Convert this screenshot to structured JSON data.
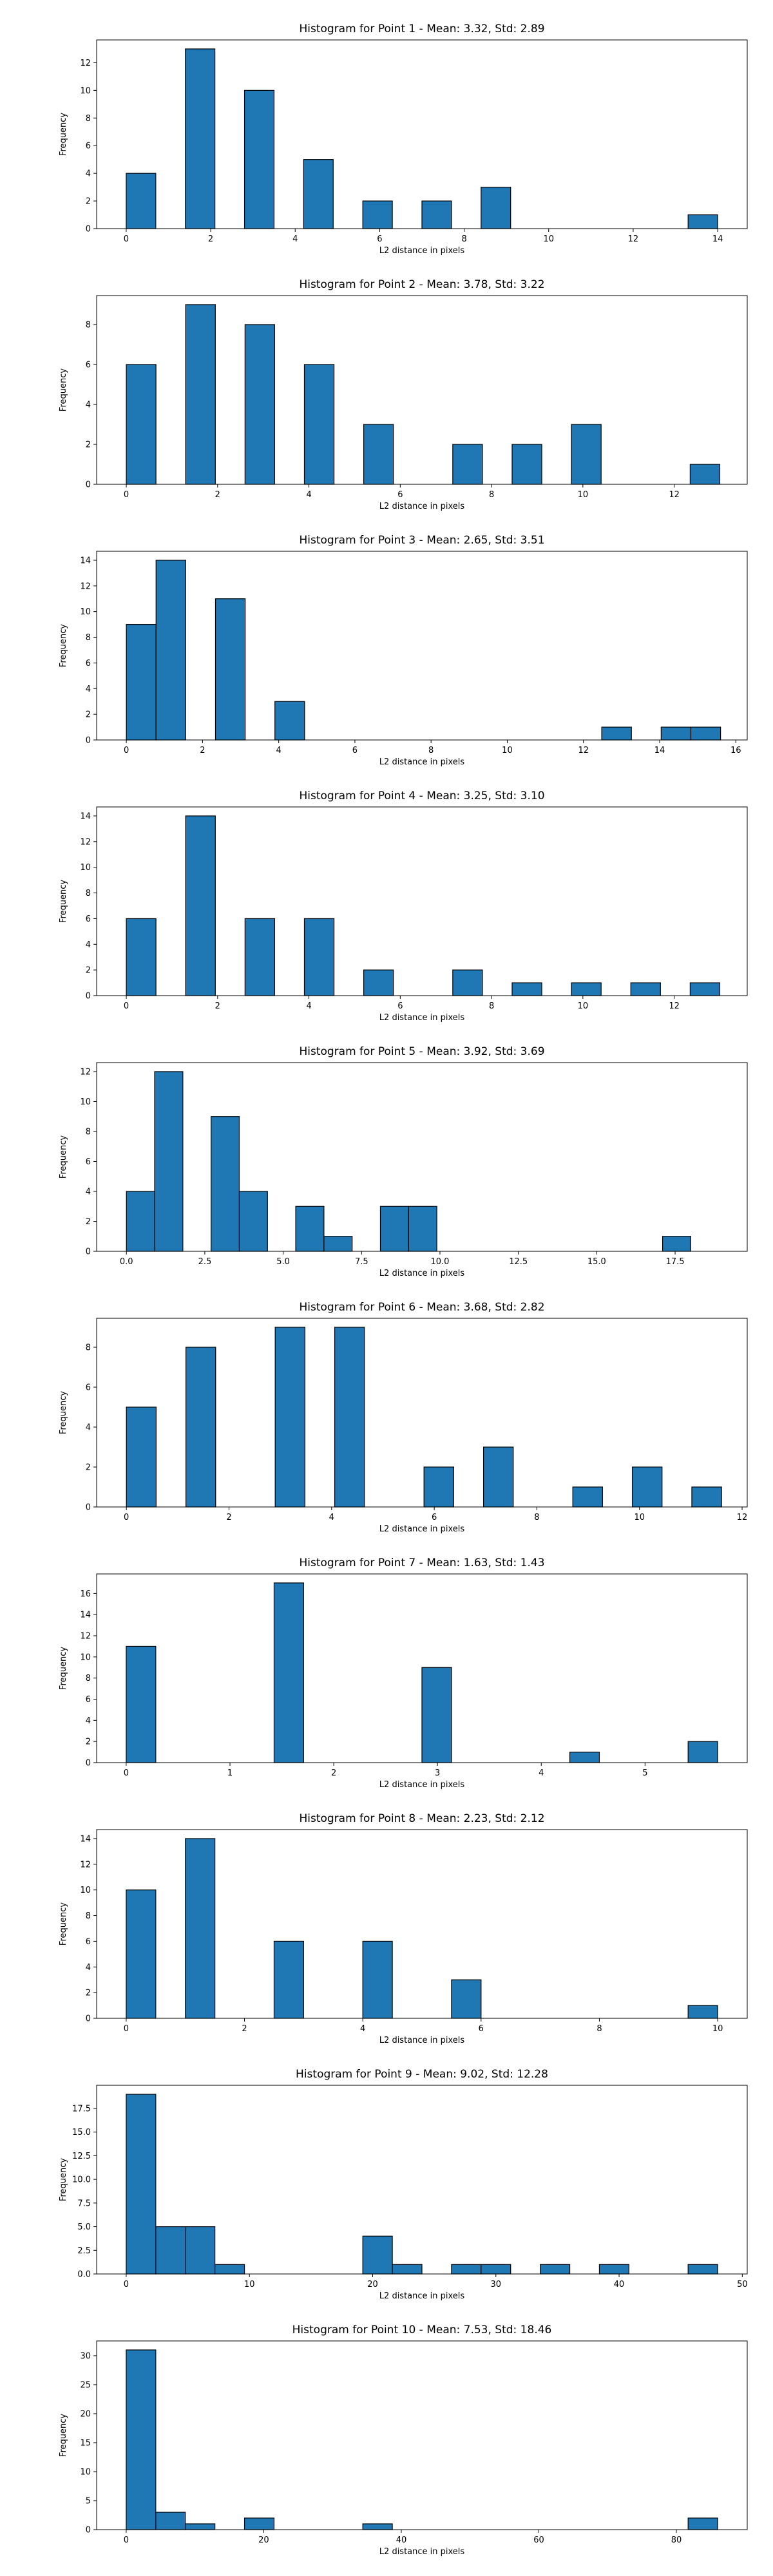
{
  "chart_data": [
    {
      "type": "bar",
      "title": "Histogram for Point 1 - Mean: 3.32, Std: 2.89",
      "xlabel": "L2 distance in pixels",
      "ylabel": "Frequency",
      "xlim": [
        -0.7,
        14.7
      ],
      "ylim": [
        0,
        13.65
      ],
      "xticks": [
        0,
        2,
        4,
        6,
        8,
        10,
        12,
        14
      ],
      "yticks": [
        0,
        2,
        4,
        6,
        8,
        10,
        12
      ],
      "bin_edges": [
        0.0,
        0.7,
        1.4,
        2.1,
        2.8,
        3.5,
        4.2,
        4.9,
        5.6,
        6.3,
        7.0,
        7.7,
        8.4,
        9.1,
        9.8,
        10.5,
        11.2,
        11.9,
        12.6,
        13.3,
        14.0
      ],
      "values": [
        4,
        0,
        13,
        0,
        10,
        0,
        5,
        0,
        2,
        0,
        2,
        0,
        3,
        0,
        0,
        0,
        0,
        0,
        0,
        1
      ],
      "grid": false
    },
    {
      "type": "bar",
      "title": "Histogram for Point 2 - Mean: 3.78, Std: 3.22",
      "xlabel": "L2 distance in pixels",
      "ylabel": "Frequency",
      "xlim": [
        -0.65,
        13.6
      ],
      "ylim": [
        0,
        9.45
      ],
      "xticks": [
        0,
        2,
        4,
        6,
        8,
        10,
        12,
        14
      ],
      "yticks": [
        0,
        2,
        4,
        6,
        8
      ],
      "bin_edges": [
        0.0,
        0.65,
        1.3,
        1.95,
        2.6,
        3.25,
        3.9,
        4.55,
        5.2,
        5.85,
        6.5,
        7.15,
        7.8,
        8.45,
        9.1,
        9.75,
        10.4,
        11.05,
        11.7,
        12.35,
        13.0
      ],
      "values": [
        6,
        0,
        9,
        0,
        8,
        0,
        6,
        0,
        3,
        0,
        0,
        2,
        0,
        2,
        0,
        3,
        0,
        0,
        0,
        1
      ],
      "grid": false
    },
    {
      "type": "bar",
      "title": "Histogram for Point 3 - Mean: 2.65, Std: 3.51",
      "xlabel": "L2 distance in pixels",
      "ylabel": "Frequency",
      "xlim": [
        -0.78,
        16.3
      ],
      "ylim": [
        0,
        14.7
      ],
      "xticks": [
        0,
        2,
        4,
        6,
        8,
        10,
        12,
        14,
        16
      ],
      "yticks": [
        0,
        2,
        4,
        6,
        8,
        10,
        12,
        14
      ],
      "bin_edges": [
        0.0,
        0.78,
        1.56,
        2.34,
        3.12,
        3.9,
        4.68,
        5.46,
        6.24,
        7.02,
        7.8,
        8.58,
        9.36,
        10.14,
        10.92,
        11.7,
        12.48,
        13.26,
        14.04,
        14.82,
        15.6
      ],
      "values": [
        9,
        14,
        0,
        11,
        0,
        3,
        0,
        0,
        0,
        0,
        0,
        0,
        0,
        0,
        0,
        0,
        1,
        0,
        1,
        1
      ],
      "grid": false
    },
    {
      "type": "bar",
      "title": "Histogram for Point 4 - Mean: 3.25, Std: 3.10",
      "xlabel": "L2 distance in pixels",
      "ylabel": "Frequency",
      "xlim": [
        -0.65,
        13.6
      ],
      "ylim": [
        0,
        14.7
      ],
      "xticks": [
        0,
        2,
        4,
        6,
        8,
        10,
        12,
        14
      ],
      "yticks": [
        0,
        2,
        4,
        6,
        8,
        10,
        12,
        14
      ],
      "bin_edges": [
        0.0,
        0.65,
        1.3,
        1.95,
        2.6,
        3.25,
        3.9,
        4.55,
        5.2,
        5.85,
        6.5,
        7.15,
        7.8,
        8.45,
        9.1,
        9.75,
        10.4,
        11.05,
        11.7,
        12.35,
        13.0
      ],
      "values": [
        6,
        0,
        14,
        0,
        6,
        0,
        6,
        0,
        2,
        0,
        0,
        2,
        0,
        1,
        0,
        1,
        0,
        1,
        0,
        1
      ],
      "grid": false
    },
    {
      "type": "bar",
      "title": "Histogram for Point 5 - Mean: 3.92, Std: 3.69",
      "xlabel": "L2 distance in pixels",
      "ylabel": "Frequency",
      "xlim": [
        -0.95,
        19.8
      ],
      "ylim": [
        0,
        12.6
      ],
      "xticks": [
        0.0,
        2.5,
        5.0,
        7.5,
        10.0,
        12.5,
        15.0,
        17.5
      ],
      "xtick_labels": [
        "0.0",
        "2.5",
        "5.0",
        "7.5",
        "10.0",
        "12.5",
        "15.0",
        "17.5"
      ],
      "yticks": [
        0,
        2,
        4,
        6,
        8,
        10,
        12
      ],
      "bin_edges": [
        0.0,
        0.9,
        1.8,
        2.7,
        3.6,
        4.5,
        5.4,
        6.3,
        7.2,
        8.1,
        9.0,
        9.9,
        10.8,
        11.7,
        12.6,
        13.5,
        14.4,
        15.3,
        16.2,
        17.1,
        18.0
      ],
      "values": [
        4,
        12,
        0,
        9,
        4,
        0,
        3,
        1,
        0,
        3,
        3,
        0,
        0,
        0,
        0,
        0,
        0,
        0,
        0,
        1
      ],
      "grid": false
    },
    {
      "type": "bar",
      "title": "Histogram for Point 6 - Mean: 3.68, Std: 2.82",
      "xlabel": "L2 distance in pixels",
      "ylabel": "Frequency",
      "xlim": [
        -0.58,
        12.1
      ],
      "ylim": [
        0,
        9.45
      ],
      "xticks": [
        0,
        2,
        4,
        6,
        8,
        10,
        12
      ],
      "yticks": [
        0,
        2,
        4,
        6,
        8
      ],
      "bin_edges": [
        0.0,
        0.58,
        1.16,
        1.74,
        2.32,
        2.9,
        3.48,
        4.06,
        4.64,
        5.22,
        5.8,
        6.38,
        6.96,
        7.54,
        8.12,
        8.7,
        9.28,
        9.86,
        10.44,
        11.02,
        11.6
      ],
      "values": [
        5,
        0,
        8,
        0,
        0,
        9,
        0,
        9,
        0,
        0,
        2,
        0,
        3,
        0,
        0,
        1,
        0,
        2,
        0,
        1
      ],
      "grid": false
    },
    {
      "type": "bar",
      "title": "Histogram for Point 7 - Mean: 1.63, Std: 1.43",
      "xlabel": "L2 distance in pixels",
      "ylabel": "Frequency",
      "xlim": [
        -0.285,
        5.985
      ],
      "ylim": [
        0,
        17.85
      ],
      "xticks": [
        0,
        1,
        2,
        3,
        4,
        5,
        6
      ],
      "yticks": [
        0,
        2,
        4,
        6,
        8,
        10,
        12,
        14,
        16
      ],
      "bin_edges": [
        0.0,
        0.285,
        0.57,
        0.855,
        1.14,
        1.425,
        1.71,
        1.995,
        2.28,
        2.565,
        2.85,
        3.135,
        3.42,
        3.705,
        3.99,
        4.275,
        4.56,
        4.845,
        5.13,
        5.415,
        5.7
      ],
      "values": [
        11,
        0,
        0,
        0,
        0,
        17,
        0,
        0,
        0,
        0,
        9,
        0,
        0,
        0,
        0,
        1,
        0,
        0,
        0,
        2
      ],
      "grid": false
    },
    {
      "type": "bar",
      "title": "Histogram for Point 8 - Mean: 2.23, Std: 2.12",
      "xlabel": "L2 distance in pixels",
      "ylabel": "Frequency",
      "xlim": [
        -0.5,
        10.5
      ],
      "ylim": [
        0,
        14.7
      ],
      "xticks": [
        0,
        2,
        4,
        6,
        8,
        10
      ],
      "yticks": [
        0,
        2,
        4,
        6,
        8,
        10,
        12,
        14
      ],
      "bin_edges": [
        0.0,
        0.5,
        1.0,
        1.5,
        2.0,
        2.5,
        3.0,
        3.5,
        4.0,
        4.5,
        5.0,
        5.5,
        6.0,
        6.5,
        7.0,
        7.5,
        8.0,
        8.5,
        9.0,
        9.5,
        10.0
      ],
      "values": [
        10,
        0,
        14,
        0,
        0,
        6,
        0,
        0,
        6,
        0,
        0,
        3,
        0,
        0,
        0,
        0,
        0,
        0,
        0,
        1
      ],
      "grid": false
    },
    {
      "type": "bar",
      "title": "Histogram for Point 9 - Mean: 9.02, Std: 12.28",
      "xlabel": "L2 distance in pixels",
      "ylabel": "Frequency",
      "xlim": [
        -2.4,
        50.4
      ],
      "ylim": [
        0,
        19.95
      ],
      "xticks": [
        0,
        10,
        20,
        30,
        40,
        50
      ],
      "yticks": [
        0,
        2.5,
        5,
        7.5,
        10,
        12.5,
        15,
        17.5
      ],
      "ytick_labels": [
        "0.0",
        "2.5",
        "5.0",
        "7.5",
        "10.0",
        "12.5",
        "15.0",
        "17.5"
      ],
      "bin_edges": [
        0.0,
        2.4,
        4.8,
        7.2,
        9.6,
        12.0,
        14.4,
        16.8,
        19.2,
        21.6,
        24.0,
        26.4,
        28.8,
        31.2,
        33.6,
        36.0,
        38.4,
        40.8,
        43.2,
        45.6,
        48.0
      ],
      "values": [
        19,
        5,
        5,
        1,
        0,
        0,
        0,
        0,
        4,
        1,
        0,
        1,
        1,
        0,
        1,
        0,
        1,
        0,
        0,
        1
      ],
      "grid": false
    },
    {
      "type": "bar",
      "title": "Histogram for Point 10 - Mean: 7.53, Std: 18.46",
      "xlabel": "L2 distance in pixels",
      "ylabel": "Frequency",
      "xlim": [
        -4.3,
        90.3
      ],
      "ylim": [
        0,
        32.55
      ],
      "xticks": [
        0,
        20,
        40,
        60,
        80
      ],
      "yticks": [
        0,
        5,
        10,
        15,
        20,
        25,
        30
      ],
      "bin_edges": [
        0.0,
        4.3,
        8.6,
        12.9,
        17.2,
        21.5,
        25.8,
        30.1,
        34.4,
        38.7,
        43.0,
        47.3,
        51.6,
        55.9,
        60.2,
        64.5,
        68.8,
        73.1,
        77.4,
        81.7,
        86.0
      ],
      "values": [
        31,
        3,
        1,
        0,
        2,
        0,
        0,
        0,
        1,
        0,
        0,
        0,
        0,
        0,
        0,
        0,
        0,
        0,
        0,
        2
      ],
      "grid": false
    }
  ]
}
